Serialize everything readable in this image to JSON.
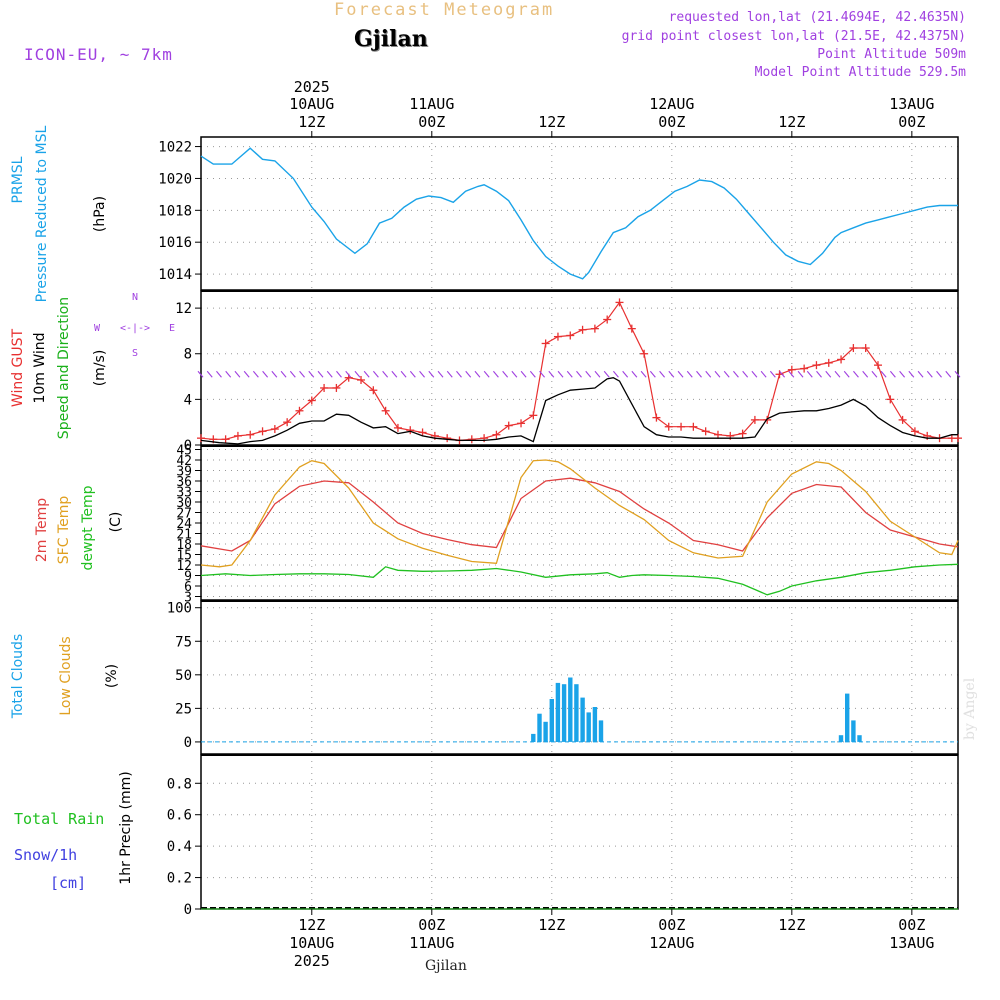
{
  "header": {
    "product": "Forecast Meteogram",
    "location": "Gjilan",
    "model": "ICON-EU, ~ 7km",
    "requested": "requested lon,lat (21.4694E, 42.4635N)",
    "gridpoint": "grid point closest lon,lat (21.5E, 42.4375N)",
    "point_alt": "Point Altitude 509m",
    "model_alt": "Model Point Altitude 529.5m",
    "watermark": "by Angel",
    "footer_location": "Gjilan"
  },
  "colors": {
    "pressure": "#1aa3e8",
    "gust": "#e83030",
    "wind": "#000000",
    "direction": "#1ab01a",
    "compass": "#a040e0",
    "temp2m": "#e04040",
    "sfc": "#e0a020",
    "dewpt": "#20c020",
    "total_clouds": "#1aa3e8",
    "low_clouds": "#e0a020",
    "rain": "#20c020",
    "snow": "#4040e0",
    "header_purple": "#a040e0",
    "header_gold": "#e8c080"
  },
  "chart_data": [
    {
      "type": "line",
      "id": "pressure",
      "ylabel_lines": [
        "PRMSL",
        "Pressure Reduced to MSL"
      ],
      "unit": "(hPa)",
      "ylim": [
        1013,
        1022.6
      ],
      "yticks": [
        1014,
        1016,
        1018,
        1020,
        1022
      ],
      "grid": true,
      "series": [
        {
          "x": [
            0,
            2,
            5,
            8,
            10,
            12,
            15,
            18,
            20,
            22,
            25,
            27,
            29,
            31,
            33,
            35,
            37,
            39,
            41,
            43,
            45,
            46,
            48,
            50,
            52,
            54,
            56,
            58,
            60,
            62,
            63,
            65,
            67,
            69,
            71,
            73,
            75,
            77,
            79,
            81,
            83,
            85,
            87,
            89,
            91,
            93,
            95,
            97,
            99,
            101,
            103,
            104,
            106,
            108,
            110,
            112,
            114,
            116,
            118,
            120,
            122,
            123
          ],
          "values": [
            1021.4,
            1020.9,
            1020.9,
            1021.9,
            1021.2,
            1021.1,
            1020,
            1018.2,
            1017.3,
            1016.2,
            1015.3,
            1015.9,
            1017.2,
            1017.5,
            1018.2,
            1018.7,
            1018.9,
            1018.8,
            1018.5,
            1019.2,
            1019.5,
            1019.6,
            1019.2,
            1018.6,
            1017.4,
            1016.1,
            1015.1,
            1014.5,
            1014.0,
            1013.7,
            1014.1,
            1015.4,
            1016.6,
            1016.9,
            1017.6,
            1018.0,
            1018.6,
            1019.2,
            1019.5,
            1019.9,
            1019.8,
            1019.4,
            1018.7,
            1017.8,
            1016.9,
            1016.0,
            1015.2,
            1014.8,
            1014.6,
            1015.3,
            1016.3,
            1016.6,
            1016.9,
            1017.2,
            1017.4,
            1017.6,
            1017.8,
            1018.0,
            1018.2,
            1018.3,
            1018.3,
            1018.3
          ]
        }
      ]
    },
    {
      "type": "line",
      "id": "wind",
      "ylabel_lines": [
        "Wind GUST",
        "10m Wind",
        "Speed and Direction"
      ],
      "unit": "(m/s)",
      "ylim": [
        0,
        13.5
      ],
      "yticks": [
        0,
        4,
        8,
        12
      ],
      "grid": true,
      "compass": {
        "n": "N",
        "s": "S",
        "w": "W",
        "e": "E",
        "arrow": "<-|->"
      },
      "series": [
        {
          "name": "Wind GUST",
          "x": [
            0,
            2,
            4,
            6,
            8,
            10,
            12,
            14,
            16,
            18,
            20,
            22,
            24,
            26,
            28,
            30,
            32,
            34,
            36,
            38,
            40,
            42,
            44,
            46,
            48,
            50,
            52,
            54,
            56,
            58,
            60,
            62,
            64,
            66,
            68,
            70,
            72,
            74,
            76,
            78,
            80,
            82,
            84,
            86,
            88,
            90,
            92,
            94,
            96,
            98,
            100,
            102,
            104,
            106,
            108,
            110,
            112,
            114,
            116,
            118,
            120,
            122,
            123
          ],
          "values": [
            0.6,
            0.5,
            0.5,
            0.8,
            0.9,
            1.2,
            1.4,
            2.0,
            3.0,
            3.9,
            5.0,
            5.0,
            5.9,
            5.7,
            4.8,
            3.0,
            1.5,
            1.3,
            1.1,
            0.8,
            0.6,
            0.4,
            0.5,
            0.6,
            0.9,
            1.7,
            1.9,
            2.6,
            8.9,
            9.5,
            9.6,
            10.1,
            10.2,
            11.0,
            12.5,
            10.2,
            8.0,
            2.4,
            1.6,
            1.6,
            1.6,
            1.2,
            0.9,
            0.8,
            1.0,
            2.2,
            2.2,
            6.2,
            6.6,
            6.7,
            7.0,
            7.2,
            7.5,
            8.5,
            8.5,
            7.0,
            4.0,
            2.2,
            1.2,
            0.8,
            0.6,
            0.6,
            0.6
          ]
        },
        {
          "name": "10m Wind",
          "x": [
            0,
            3,
            6,
            8,
            10,
            12,
            14,
            16,
            18,
            20,
            22,
            24,
            26,
            28,
            30,
            32,
            34,
            36,
            38,
            40,
            42,
            44,
            46,
            48,
            50,
            52,
            54,
            56,
            58,
            60,
            62,
            64,
            66,
            67,
            68,
            70,
            72,
            74,
            76,
            78,
            80,
            82,
            84,
            86,
            88,
            90,
            92,
            94,
            96,
            98,
            100,
            102,
            104,
            106,
            108,
            110,
            112,
            114,
            116,
            118,
            120,
            122,
            123
          ],
          "values": [
            0.4,
            0.2,
            0.1,
            0.3,
            0.4,
            0.8,
            1.3,
            1.9,
            2.1,
            2.1,
            2.7,
            2.6,
            2.0,
            1.5,
            1.6,
            1.0,
            1.2,
            0.8,
            0.6,
            0.5,
            0.4,
            0.4,
            0.4,
            0.5,
            0.7,
            0.8,
            0.3,
            3.9,
            4.4,
            4.8,
            4.9,
            5.0,
            5.8,
            5.9,
            5.6,
            3.6,
            1.6,
            0.9,
            0.7,
            0.7,
            0.6,
            0.6,
            0.6,
            0.6,
            0.6,
            0.7,
            2.3,
            2.8,
            2.9,
            3.0,
            3.0,
            3.2,
            3.5,
            4.0,
            3.4,
            2.4,
            1.7,
            1.1,
            0.8,
            0.6,
            0.6,
            0.9,
            0.9
          ]
        }
      ]
    },
    {
      "type": "line",
      "id": "temperature",
      "ylabel_lines": [
        "2m Temp",
        "SFC Temp",
        "dewpt Temp"
      ],
      "unit": "(C)",
      "ylim": [
        2,
        46
      ],
      "yticks": [
        3,
        6,
        9,
        12,
        15,
        18,
        21,
        24,
        27,
        30,
        33,
        36,
        39,
        42,
        45
      ],
      "grid": true,
      "series": [
        {
          "name": "2m Temp",
          "x": [
            0,
            5,
            8,
            12,
            16,
            20,
            24,
            28,
            32,
            36,
            40,
            44,
            48,
            52,
            56,
            60,
            64,
            68,
            72,
            76,
            80,
            84,
            88,
            92,
            96,
            100,
            104,
            108,
            112,
            116,
            120,
            123
          ],
          "values": [
            17.5,
            16.0,
            19.0,
            29.5,
            34.5,
            36.0,
            35.5,
            30.0,
            24.0,
            21.0,
            19.3,
            17.8,
            17.0,
            31.0,
            36.0,
            36.8,
            35.5,
            33.0,
            28.0,
            24.0,
            19.0,
            17.8,
            16.0,
            25.5,
            32.5,
            35.0,
            34.3,
            27.0,
            22.0,
            20.0,
            18.0,
            17.2
          ]
        },
        {
          "name": "SFC Temp",
          "x": [
            0,
            3,
            5,
            8,
            12,
            16,
            18,
            20,
            24,
            28,
            32,
            36,
            40,
            44,
            48,
            52,
            54,
            56,
            58,
            60,
            64,
            68,
            72,
            76,
            80,
            84,
            88,
            92,
            96,
            100,
            102,
            104,
            108,
            112,
            116,
            120,
            122,
            123
          ],
          "values": [
            12.0,
            11.5,
            12.0,
            19.0,
            32.0,
            40.0,
            41.8,
            41.0,
            34.0,
            24.0,
            19.5,
            16.8,
            14.8,
            13.0,
            12.5,
            37.0,
            41.8,
            42.0,
            41.5,
            39.5,
            34.0,
            29.0,
            25.0,
            19.0,
            15.5,
            14.0,
            14.5,
            30.0,
            38.0,
            41.5,
            41.0,
            39.0,
            33.0,
            24.5,
            20.0,
            15.5,
            15.0,
            19.0
          ]
        },
        {
          "name": "dewpt Temp",
          "x": [
            0,
            4,
            8,
            12,
            16,
            20,
            24,
            28,
            30,
            32,
            36,
            40,
            44,
            48,
            52,
            56,
            60,
            64,
            66,
            68,
            70,
            72,
            76,
            80,
            84,
            88,
            90,
            92,
            94,
            96,
            100,
            104,
            108,
            112,
            116,
            120,
            123
          ],
          "values": [
            9.0,
            9.5,
            9.0,
            9.3,
            9.5,
            9.5,
            9.3,
            8.5,
            11.5,
            10.5,
            10.2,
            10.3,
            10.5,
            11.0,
            10.0,
            8.5,
            9.2,
            9.5,
            9.8,
            8.5,
            9.0,
            9.2,
            9.0,
            8.7,
            8.2,
            6.5,
            5.0,
            3.5,
            4.5,
            6.0,
            7.5,
            8.5,
            9.8,
            10.5,
            11.5,
            12.0,
            12.2
          ]
        }
      ]
    },
    {
      "type": "bar",
      "id": "clouds",
      "ylabel_lines": [
        "Total Clouds",
        "Low Clouds"
      ],
      "unit": "(%)",
      "ylim": [
        -9,
        105
      ],
      "yticks": [
        0,
        25,
        50,
        75,
        100
      ],
      "grid": true,
      "series": [
        {
          "name": "Total Clouds",
          "x": [
            54,
            55,
            56,
            57,
            58,
            59,
            60,
            61,
            62,
            63,
            64,
            65,
            66,
            104,
            105,
            106,
            107
          ],
          "values": [
            6,
            21,
            15,
            32,
            44,
            43,
            48,
            43,
            33,
            22,
            26,
            16,
            0,
            5,
            36,
            16,
            5
          ]
        }
      ]
    },
    {
      "type": "line",
      "id": "precip",
      "ylabel_lines": [
        "1hr Precip (mm)"
      ],
      "legend_lines": [
        "Total  Rain",
        "Snow/1h",
        "[cm]"
      ],
      "ylim": [
        0,
        0.98
      ],
      "yticks": [
        0,
        0.2,
        0.4,
        0.6,
        0.8
      ],
      "ytick_labels": [
        "0",
        "0.2",
        "0.4",
        "0.6",
        "0.8"
      ],
      "grid": true,
      "series": [
        {
          "name": "Total Rain",
          "x": [
            0,
            123
          ],
          "values": [
            0,
            0
          ]
        }
      ]
    }
  ],
  "time_axis": {
    "hours_range": [
      0,
      123
    ],
    "top_year": "2025",
    "ticks": [
      {
        "h": 18,
        "top1": "10AUG",
        "top2": "12Z",
        "bot1": "12Z",
        "bot2": "10AUG",
        "bot3": "2025"
      },
      {
        "h": 37.5,
        "top1": "11AUG",
        "top2": "00Z",
        "bot1": "00Z",
        "bot2": "11AUG",
        "bot3": ""
      },
      {
        "h": 57,
        "top1": "",
        "top2": "12Z",
        "bot1": "12Z",
        "bot2": "",
        "bot3": ""
      },
      {
        "h": 76.5,
        "top1": "12AUG",
        "top2": "00Z",
        "bot1": "00Z",
        "bot2": "12AUG",
        "bot3": ""
      },
      {
        "h": 96,
        "top1": "",
        "top2": "12Z",
        "bot1": "12Z",
        "bot2": "",
        "bot3": ""
      },
      {
        "h": 115.5,
        "top1": "13AUG",
        "top2": "00Z",
        "bot1": "00Z",
        "bot2": "13AUG",
        "bot3": ""
      }
    ]
  }
}
